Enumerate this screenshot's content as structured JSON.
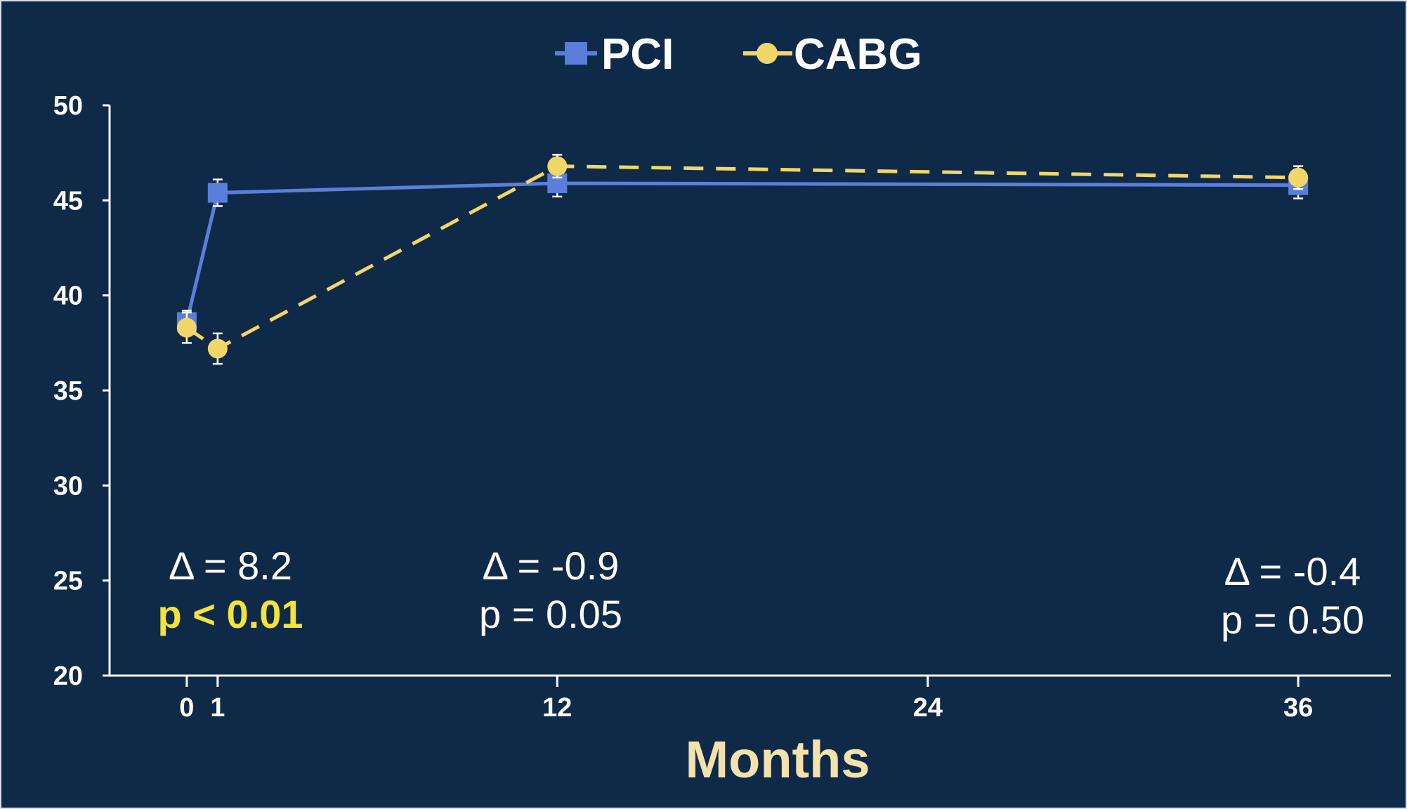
{
  "chart_data": {
    "type": "line",
    "xlabel": "Months",
    "ylabel": "",
    "xlim": [
      -2.5,
      39
    ],
    "ylim": [
      20,
      50
    ],
    "yticks": [
      "20",
      "25",
      "30",
      "35",
      "40",
      "45",
      "50"
    ],
    "xticks": [
      "0",
      "1",
      "12",
      "24",
      "36"
    ],
    "legend_position": "top-center",
    "series": [
      {
        "name": "PCI",
        "color": "#5b7fd9",
        "marker": "square",
        "dash": "solid",
        "x": [
          0,
          1,
          12,
          36
        ],
        "y": [
          38.6,
          45.4,
          45.9,
          45.8
        ],
        "err": [
          0.6,
          0.7,
          0.7,
          0.7
        ]
      },
      {
        "name": "CABG",
        "color": "#f1d66a",
        "marker": "circle",
        "dash": "dashed",
        "x": [
          0,
          1,
          12,
          36
        ],
        "y": [
          38.3,
          37.2,
          46.8,
          46.2
        ],
        "err": [
          0.8,
          0.8,
          0.6,
          0.6
        ]
      }
    ],
    "annotations": [
      {
        "delta": "Δ = 8.2",
        "p": "p < 0.01",
        "p_highlight": true
      },
      {
        "delta": "Δ = -0.9",
        "p": "p = 0.05",
        "p_highlight": false
      },
      {
        "delta": "Δ = -0.4",
        "p": "p = 0.50",
        "p_highlight": false
      }
    ]
  }
}
